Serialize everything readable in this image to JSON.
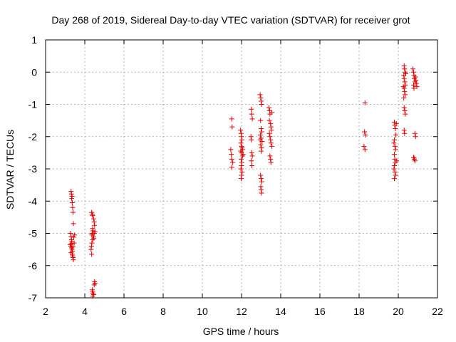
{
  "chart_data": {
    "type": "scatter",
    "title": "Day 268 of 2019, Sidereal Day-to-day VTEC variation (SDTVAR) for receiver grot",
    "xlabel": "GPS time / hours",
    "ylabel": "SDTVAR / TECUs",
    "xlim": [
      2,
      22
    ],
    "ylim": [
      -7,
      1
    ],
    "xticks": [
      2,
      4,
      6,
      8,
      10,
      12,
      14,
      16,
      18,
      20,
      22
    ],
    "yticks": [
      1,
      0,
      -1,
      -2,
      -3,
      -4,
      -5,
      -6,
      -7
    ],
    "grid": true,
    "marker": "+",
    "color": "#e00000",
    "series": [
      {
        "name": "SDTVAR",
        "points": [
          [
            3.3,
            -3.7
          ],
          [
            3.32,
            -3.78
          ],
          [
            3.35,
            -3.85
          ],
          [
            3.33,
            -3.92
          ],
          [
            3.36,
            -4.05
          ],
          [
            3.38,
            -4.2
          ],
          [
            3.4,
            -4.35
          ],
          [
            3.42,
            -4.7
          ],
          [
            3.28,
            -5.0
          ],
          [
            3.3,
            -5.1
          ],
          [
            3.32,
            -5.2
          ],
          [
            3.34,
            -5.25
          ],
          [
            3.31,
            -5.32
          ],
          [
            3.29,
            -5.4
          ],
          [
            3.33,
            -5.45
          ],
          [
            3.35,
            -5.5
          ],
          [
            3.37,
            -5.55
          ],
          [
            3.3,
            -5.6
          ],
          [
            3.36,
            -5.65
          ],
          [
            3.38,
            -5.7
          ],
          [
            3.4,
            -5.75
          ],
          [
            3.42,
            -5.82
          ],
          [
            3.44,
            -5.12
          ],
          [
            3.46,
            -5.3
          ],
          [
            3.48,
            -5.05
          ],
          [
            3.26,
            -5.35
          ],
          [
            3.39,
            -5.42
          ],
          [
            4.35,
            -4.35
          ],
          [
            4.38,
            -4.4
          ],
          [
            4.4,
            -4.45
          ],
          [
            4.45,
            -4.55
          ],
          [
            4.48,
            -4.65
          ],
          [
            4.5,
            -4.75
          ],
          [
            4.4,
            -4.85
          ],
          [
            4.42,
            -4.92
          ],
          [
            4.38,
            -5.0
          ],
          [
            4.36,
            -5.05
          ],
          [
            4.44,
            -5.1
          ],
          [
            4.46,
            -5.15
          ],
          [
            4.4,
            -5.2
          ],
          [
            4.36,
            -5.3
          ],
          [
            4.34,
            -5.4
          ],
          [
            4.32,
            -5.5
          ],
          [
            4.35,
            -5.65
          ],
          [
            4.48,
            -5.0
          ],
          [
            4.52,
            -4.95
          ],
          [
            4.5,
            -6.5
          ],
          [
            4.52,
            -6.55
          ],
          [
            4.48,
            -6.6
          ],
          [
            4.38,
            -6.75
          ],
          [
            4.4,
            -6.8
          ],
          [
            4.42,
            -6.85
          ],
          [
            4.45,
            -6.9
          ],
          [
            4.4,
            -6.95
          ],
          [
            11.5,
            -1.45
          ],
          [
            11.52,
            -1.7
          ],
          [
            11.45,
            -2.4
          ],
          [
            11.48,
            -2.55
          ],
          [
            11.5,
            -2.7
          ],
          [
            11.55,
            -2.8
          ],
          [
            11.5,
            -2.95
          ],
          [
            11.95,
            -1.8
          ],
          [
            11.98,
            -1.9
          ],
          [
            12.0,
            -2.0
          ],
          [
            12.02,
            -2.1
          ],
          [
            11.97,
            -2.2
          ],
          [
            12.0,
            -2.3
          ],
          [
            12.03,
            -2.35
          ],
          [
            11.96,
            -2.45
          ],
          [
            12.0,
            -2.5
          ],
          [
            12.05,
            -2.6
          ],
          [
            11.98,
            -2.7
          ],
          [
            12.02,
            -2.8
          ],
          [
            12.0,
            -2.9
          ],
          [
            11.97,
            -3.0
          ],
          [
            12.03,
            -3.1
          ],
          [
            12.0,
            -3.2
          ],
          [
            11.98,
            -3.3
          ],
          [
            12.06,
            -2.4
          ],
          [
            12.08,
            -2.55
          ],
          [
            12.5,
            -1.15
          ],
          [
            12.52,
            -1.3
          ],
          [
            12.55,
            -1.45
          ],
          [
            12.48,
            -2.0
          ],
          [
            12.5,
            -2.1
          ],
          [
            12.52,
            -2.5
          ],
          [
            12.55,
            -2.6
          ],
          [
            12.5,
            -2.75
          ],
          [
            12.53,
            -2.9
          ],
          [
            12.95,
            -0.7
          ],
          [
            12.98,
            -0.8
          ],
          [
            13.0,
            -0.9
          ],
          [
            13.02,
            -1.0
          ],
          [
            12.97,
            -1.5
          ],
          [
            13.0,
            -1.75
          ],
          [
            13.03,
            -1.85
          ],
          [
            12.96,
            -1.95
          ],
          [
            13.0,
            -2.05
          ],
          [
            13.05,
            -2.15
          ],
          [
            12.98,
            -2.25
          ],
          [
            13.02,
            -2.35
          ],
          [
            13.0,
            -2.45
          ],
          [
            12.97,
            -3.2
          ],
          [
            13.0,
            -3.3
          ],
          [
            13.03,
            -3.4
          ],
          [
            12.98,
            -3.55
          ],
          [
            13.0,
            -3.65
          ],
          [
            13.02,
            -3.75
          ],
          [
            12.95,
            -2.1
          ],
          [
            13.4,
            -1.1
          ],
          [
            13.43,
            -1.2
          ],
          [
            13.45,
            -1.3
          ],
          [
            13.48,
            -1.6
          ],
          [
            13.5,
            -1.7
          ],
          [
            13.52,
            -1.8
          ],
          [
            13.42,
            -1.9
          ],
          [
            13.45,
            -2.0
          ],
          [
            13.48,
            -2.1
          ],
          [
            13.5,
            -2.2
          ],
          [
            13.55,
            -2.3
          ],
          [
            13.45,
            -2.6
          ],
          [
            13.48,
            -2.7
          ],
          [
            13.5,
            -2.8
          ],
          [
            13.42,
            -1.5
          ],
          [
            13.55,
            -1.25
          ],
          [
            18.3,
            -0.95
          ],
          [
            18.28,
            -1.85
          ],
          [
            18.32,
            -1.95
          ],
          [
            18.25,
            -2.3
          ],
          [
            18.3,
            -2.4
          ],
          [
            19.8,
            -1.55
          ],
          [
            19.82,
            -1.65
          ],
          [
            19.85,
            -1.75
          ],
          [
            19.88,
            -1.95
          ],
          [
            19.8,
            -2.1
          ],
          [
            19.78,
            -2.2
          ],
          [
            19.83,
            -2.3
          ],
          [
            19.86,
            -2.4
          ],
          [
            19.8,
            -2.55
          ],
          [
            19.82,
            -2.7
          ],
          [
            19.85,
            -2.8
          ],
          [
            19.8,
            -2.9
          ],
          [
            19.78,
            -3.0
          ],
          [
            19.83,
            -3.1
          ],
          [
            19.86,
            -3.2
          ],
          [
            19.8,
            -3.3
          ],
          [
            19.9,
            -1.6
          ],
          [
            19.92,
            -2.75
          ],
          [
            20.3,
            0.2
          ],
          [
            20.32,
            0.1
          ],
          [
            20.35,
            0.0
          ],
          [
            20.28,
            -0.1
          ],
          [
            20.3,
            -0.2
          ],
          [
            20.33,
            -0.3
          ],
          [
            20.36,
            -0.4
          ],
          [
            20.3,
            -0.5
          ],
          [
            20.32,
            -0.6
          ],
          [
            20.35,
            -0.7
          ],
          [
            20.28,
            -0.8
          ],
          [
            20.3,
            -1.1
          ],
          [
            20.33,
            -1.2
          ],
          [
            20.36,
            -1.3
          ],
          [
            20.3,
            -1.8
          ],
          [
            20.32,
            -1.9
          ],
          [
            20.38,
            -0.05
          ],
          [
            20.26,
            -0.45
          ],
          [
            20.75,
            0.1
          ],
          [
            20.78,
            0.0
          ],
          [
            20.8,
            -0.1
          ],
          [
            20.82,
            -0.2
          ],
          [
            20.85,
            -0.3
          ],
          [
            20.78,
            -0.4
          ],
          [
            20.8,
            -0.5
          ],
          [
            20.88,
            -0.15
          ],
          [
            20.9,
            -0.25
          ],
          [
            20.92,
            -0.35
          ],
          [
            20.95,
            -0.45
          ],
          [
            20.85,
            -1.9
          ],
          [
            20.88,
            -2.0
          ],
          [
            20.8,
            -2.65
          ],
          [
            20.82,
            -2.7
          ],
          [
            20.85,
            -2.75
          ],
          [
            20.78,
            -2.65
          ]
        ]
      }
    ]
  }
}
